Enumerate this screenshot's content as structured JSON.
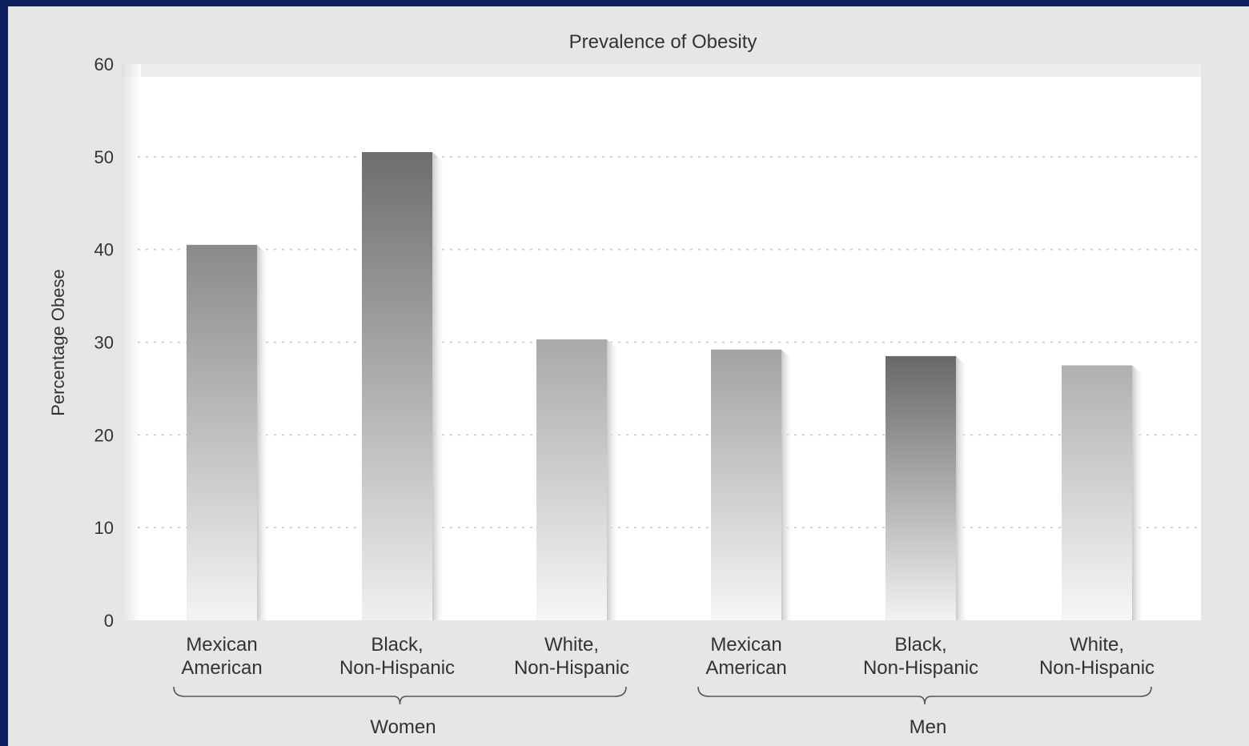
{
  "chart_data": {
    "type": "bar",
    "title": "Prevalence of Obesity",
    "xlabel": "",
    "ylabel": "Percentage Obese",
    "ylim": [
      0,
      60
    ],
    "yticks": [
      "0",
      "10",
      "20",
      "30",
      "40",
      "50",
      "60"
    ],
    "grid": true,
    "categories": [
      [
        "Mexican",
        "American"
      ],
      [
        "Black,",
        "Non-Hispanic"
      ],
      [
        "White,",
        "Non-Hispanic"
      ],
      [
        "Mexican",
        "American"
      ],
      [
        "Black,",
        "Non-Hispanic"
      ],
      [
        "White,",
        "Non-Hispanic"
      ]
    ],
    "groups": [
      {
        "label": "Women",
        "members": [
          0,
          1,
          2
        ]
      },
      {
        "label": "Men",
        "members": [
          3,
          4,
          5
        ]
      }
    ],
    "values": [
      40.5,
      50.5,
      30.3,
      29.2,
      28.5,
      27.5
    ],
    "bar_shades": [
      {
        "top": "#8a8a8a",
        "bottom": "#f4f4f4"
      },
      {
        "top": "#6e6e6e",
        "bottom": "#f0f0f0"
      },
      {
        "top": "#a9a9a9",
        "bottom": "#f6f6f6"
      },
      {
        "top": "#a2a2a2",
        "bottom": "#f6f6f6"
      },
      {
        "top": "#686868",
        "bottom": "#f2f2f2"
      },
      {
        "top": "#b0b0b0",
        "bottom": "#f7f7f7"
      }
    ]
  }
}
